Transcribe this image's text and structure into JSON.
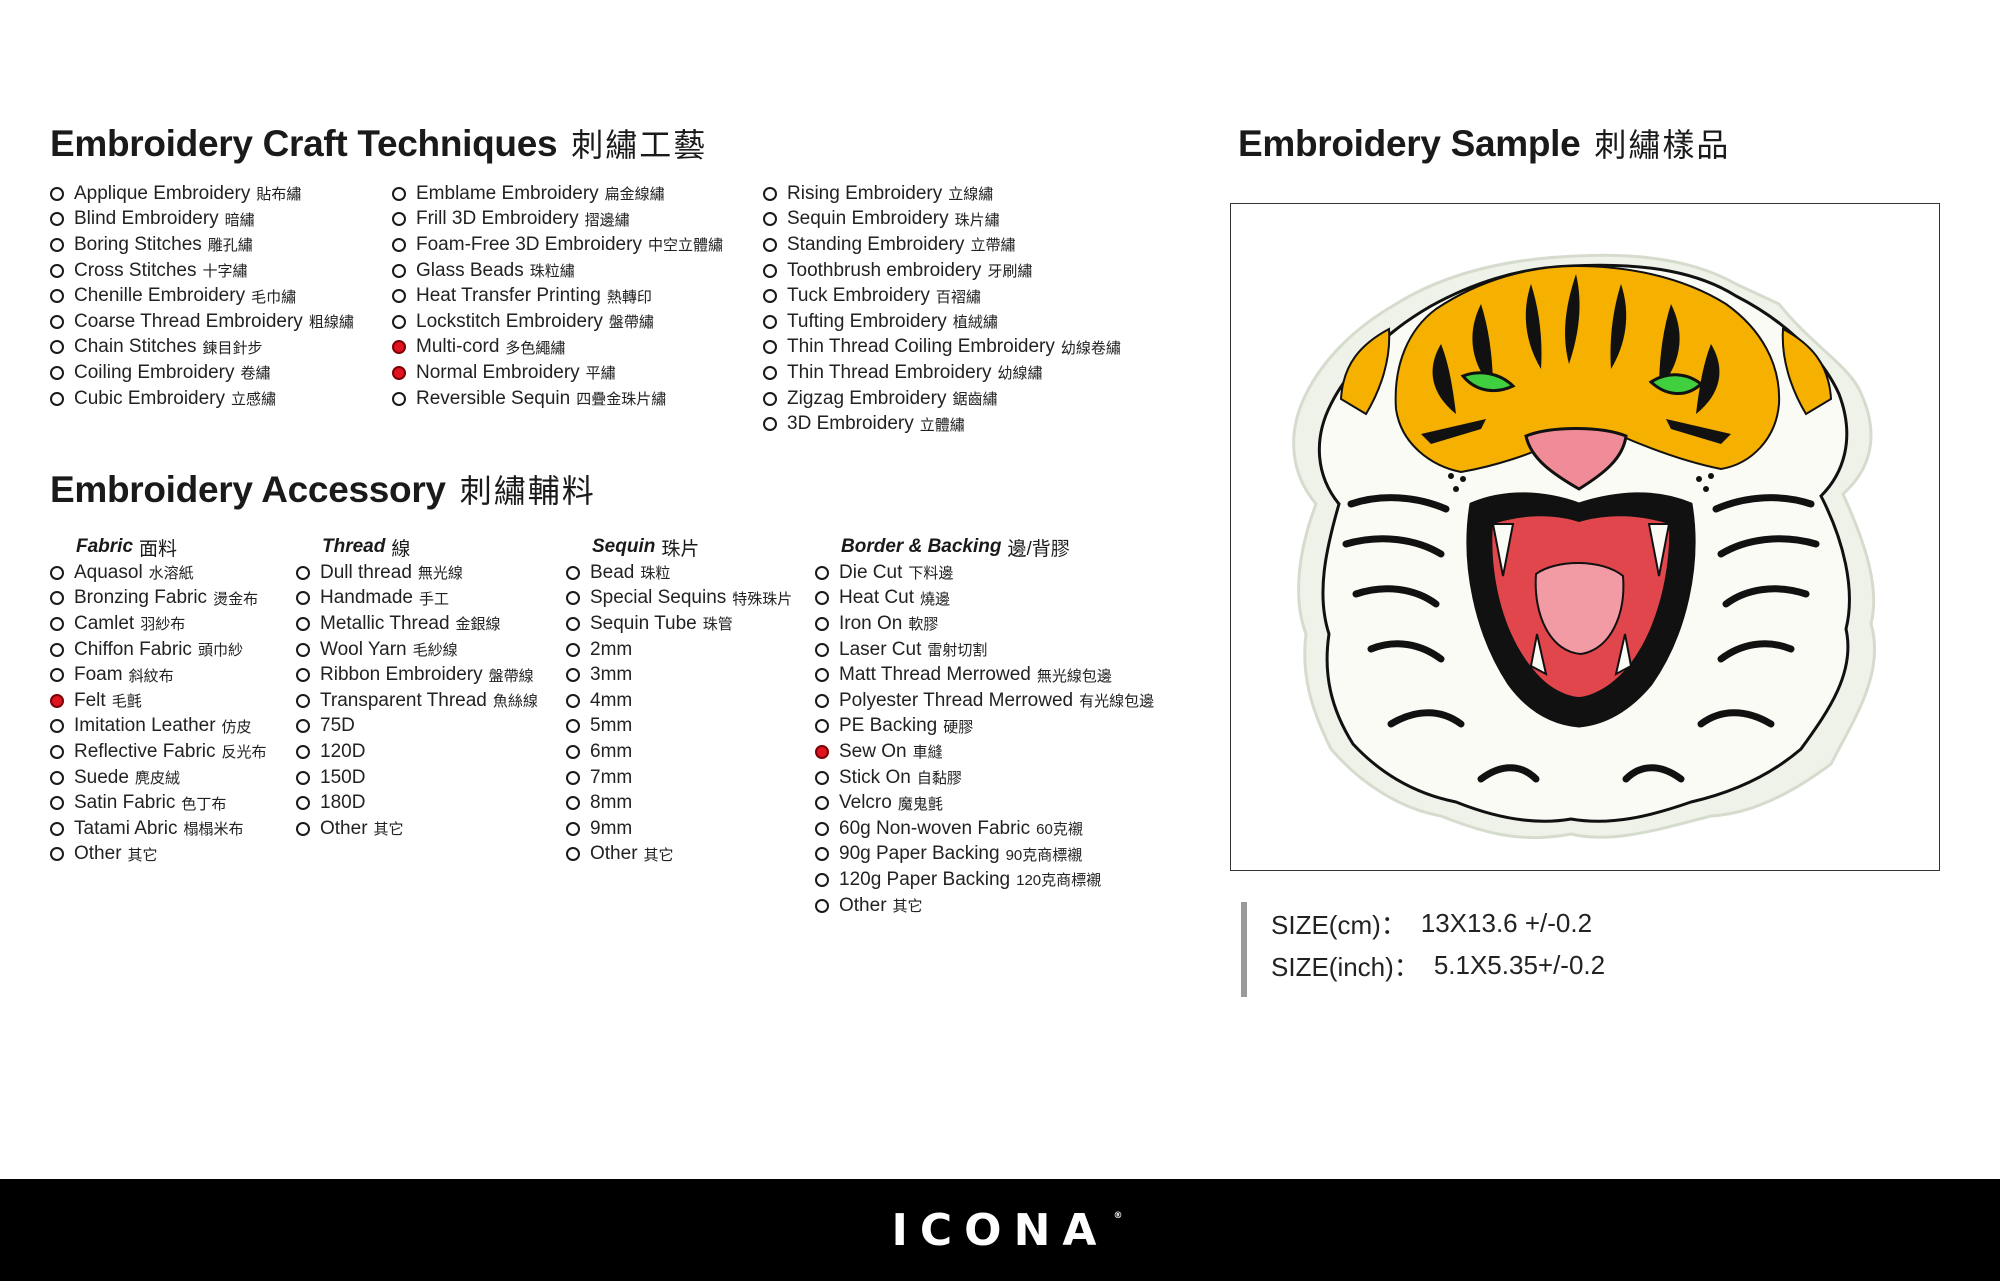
{
  "craft": {
    "title": "Embroidery Craft Techniques",
    "title_cn": "刺繡工藝",
    "columns": [
      [
        {
          "en": "Applique Embroidery",
          "cn": "貼布繡",
          "checked": false
        },
        {
          "en": "Blind Embroidery",
          "cn": "暗繡",
          "checked": false
        },
        {
          "en": "Boring Stitches",
          "cn": "雕孔繡",
          "checked": false
        },
        {
          "en": "Cross Stitches",
          "cn": "十字繡",
          "checked": false
        },
        {
          "en": "Chenille Embroidery",
          "cn": "毛巾繡",
          "checked": false
        },
        {
          "en": "Coarse Thread Embroidery",
          "cn": "粗線繡",
          "checked": false
        },
        {
          "en": "Chain Stitches",
          "cn": "鍊目針步",
          "checked": false
        },
        {
          "en": "Coiling Embroidery",
          "cn": "卷繡",
          "checked": false
        },
        {
          "en": "Cubic Embroidery",
          "cn": "立感繡",
          "checked": false
        }
      ],
      [
        {
          "en": "Emblame Embroidery",
          "cn": "扁金線繡",
          "checked": false
        },
        {
          "en": "Frill 3D Embroidery",
          "cn": "摺邊繡",
          "checked": false
        },
        {
          "en": "Foam-Free 3D Embroidery",
          "cn": "中空立體繡",
          "checked": false
        },
        {
          "en": "Glass Beads",
          "cn": "珠粒繡",
          "checked": false
        },
        {
          "en": "Heat Transfer Printing",
          "cn": "熱轉印",
          "checked": false
        },
        {
          "en": "Lockstitch Embroidery",
          "cn": "盤帶繡",
          "checked": false
        },
        {
          "en": "Multi-cord",
          "cn": "多色繩繡",
          "checked": true
        },
        {
          "en": "Normal Embroidery",
          "cn": "平繡",
          "checked": true
        },
        {
          "en": "Reversible Sequin",
          "cn": "四疊金珠片繡",
          "checked": false
        }
      ],
      [
        {
          "en": "Rising Embroidery",
          "cn": "立線繡",
          "checked": false
        },
        {
          "en": "Sequin Embroidery",
          "cn": "珠片繡",
          "checked": false
        },
        {
          "en": "Standing Embroidery",
          "cn": "立帶繡",
          "checked": false
        },
        {
          "en": "Toothbrush embroidery",
          "cn": "牙刷繡",
          "checked": false
        },
        {
          "en": "Tuck Embroidery",
          "cn": "百褶繡",
          "checked": false
        },
        {
          "en": "Tufting Embroidery",
          "cn": "植絨繡",
          "checked": false
        },
        {
          "en": "Thin Thread Coiling Embroidery",
          "cn": "幼線卷繡",
          "checked": false
        },
        {
          "en": "Thin Thread Embroidery",
          "cn": "幼線繡",
          "checked": false
        },
        {
          "en": "Zigzag Embroidery",
          "cn": "鋸齒繡",
          "checked": false
        },
        {
          "en": "3D Embroidery",
          "cn": "立體繡",
          "checked": false
        }
      ]
    ]
  },
  "accessory": {
    "title": "Embroidery Accessory",
    "title_cn": "刺繡輔料",
    "groups": [
      {
        "title": "Fabric",
        "title_cn": "面料",
        "items": [
          {
            "en": "Aquasol",
            "cn": "水溶紙",
            "checked": false
          },
          {
            "en": "Bronzing Fabric",
            "cn": "燙金布",
            "checked": false
          },
          {
            "en": "Camlet",
            "cn": "羽紗布",
            "checked": false
          },
          {
            "en": "Chiffon Fabric",
            "cn": "頭巾紗",
            "checked": false
          },
          {
            "en": "Foam",
            "cn": "斜紋布",
            "checked": false
          },
          {
            "en": "Felt",
            "cn": "毛氈",
            "checked": true
          },
          {
            "en": "Imitation Leather",
            "cn": "仿皮",
            "checked": false
          },
          {
            "en": "Reflective Fabric",
            "cn": "反光布",
            "checked": false
          },
          {
            "en": "Suede",
            "cn": "麂皮絨",
            "checked": false
          },
          {
            "en": "Satin Fabric",
            "cn": "色丁布",
            "checked": false
          },
          {
            "en": "Tatami Abric",
            "cn": "榻榻米布",
            "checked": false
          },
          {
            "en": "Other",
            "cn": "其它",
            "checked": false
          }
        ]
      },
      {
        "title": "Thread",
        "title_cn": "線",
        "items": [
          {
            "en": "Dull thread",
            "cn": "無光線",
            "checked": false
          },
          {
            "en": "Handmade",
            "cn": "手工",
            "checked": false
          },
          {
            "en": "Metallic Thread",
            "cn": "金銀線",
            "checked": false
          },
          {
            "en": "Wool Yarn",
            "cn": "毛紗線",
            "checked": false
          },
          {
            "en": "Ribbon Embroidery",
            "cn": "盤帶線",
            "checked": false
          },
          {
            "en": "Transparent Thread",
            "cn": "魚絲線",
            "checked": false
          },
          {
            "en": "75D",
            "cn": "",
            "checked": false
          },
          {
            "en": "120D",
            "cn": "",
            "checked": false
          },
          {
            "en": "150D",
            "cn": "",
            "checked": false
          },
          {
            "en": "180D",
            "cn": "",
            "checked": false
          },
          {
            "en": "Other",
            "cn": "其它",
            "checked": false
          }
        ]
      },
      {
        "title": "Sequin",
        "title_cn": "珠片",
        "items": [
          {
            "en": "Bead",
            "cn": "珠粒",
            "checked": false
          },
          {
            "en": "Special Sequins",
            "cn": "特殊珠片",
            "checked": false
          },
          {
            "en": "Sequin Tube",
            "cn": "珠管",
            "checked": false
          },
          {
            "en": "2mm",
            "cn": "",
            "checked": false
          },
          {
            "en": "3mm",
            "cn": "",
            "checked": false
          },
          {
            "en": "4mm",
            "cn": "",
            "checked": false
          },
          {
            "en": "5mm",
            "cn": "",
            "checked": false
          },
          {
            "en": "6mm",
            "cn": "",
            "checked": false
          },
          {
            "en": "7mm",
            "cn": "",
            "checked": false
          },
          {
            "en": "8mm",
            "cn": "",
            "checked": false
          },
          {
            "en": "9mm",
            "cn": "",
            "checked": false
          },
          {
            "en": "Other",
            "cn": "其它",
            "checked": false
          }
        ]
      },
      {
        "title": "Border & Backing",
        "title_cn": "邊/背膠",
        "items": [
          {
            "en": "Die Cut",
            "cn": "下料邊",
            "checked": false
          },
          {
            "en": "Heat Cut",
            "cn": "燒邊",
            "checked": false
          },
          {
            "en": "Iron On",
            "cn": "軟膠",
            "checked": false
          },
          {
            "en": "Laser Cut",
            "cn": "雷射切割",
            "checked": false
          },
          {
            "en": "Matt Thread Merrowed",
            "cn": "無光線包邊",
            "checked": false
          },
          {
            "en": "Polyester Thread Merrowed",
            "cn": "有光線包邊",
            "checked": false
          },
          {
            "en": "PE Backing",
            "cn": "硬膠",
            "checked": false
          },
          {
            "en": "Sew On",
            "cn": "車縫",
            "checked": true
          },
          {
            "en": "Stick On",
            "cn": "自黏膠",
            "checked": false
          },
          {
            "en": "Velcro",
            "cn": "魔鬼氈",
            "checked": false
          },
          {
            "en": "60g Non-woven Fabric",
            "cn": "60克襯",
            "checked": false
          },
          {
            "en": "90g Paper Backing",
            "cn": "90克商標襯",
            "checked": false
          },
          {
            "en": "120g Paper Backing",
            "cn": "120克商標襯",
            "checked": false
          },
          {
            "en": "Other",
            "cn": "其它",
            "checked": false
          }
        ]
      }
    ]
  },
  "sample": {
    "title": "Embroidery Sample",
    "title_cn": "刺繡樣品",
    "size_cm_label": "SIZE(cm)：",
    "size_cm_value": "13X13.6 +/-0.2",
    "size_inch_label": "SIZE(inch)：",
    "size_inch_value": "5.1X5.35+/-0.2"
  },
  "footer": {
    "brand": "ICONA",
    "mark": "®"
  },
  "colors": {
    "checked": "#e0141e",
    "footer_bg": "#000000",
    "tiger_orange": "#f5b000",
    "tiger_eye": "#3fcf3f",
    "tiger_nose": "#ef8c97"
  }
}
